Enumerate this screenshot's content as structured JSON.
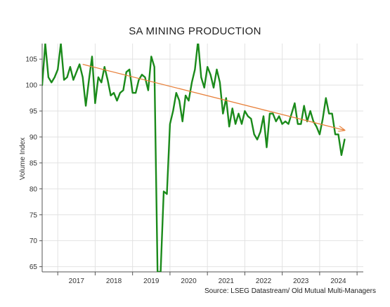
{
  "chart_data": {
    "type": "line",
    "title": "SA MINING PRODUCTION",
    "ylabel": "Volume Index",
    "xlabel": "",
    "source": "Source: LSEG Datastream/ Old Mutual Multi-Managers",
    "xlim": [
      "2016-08",
      "2025-03"
    ],
    "ylim": [
      64,
      108
    ],
    "y_ticks": [
      65,
      70,
      75,
      80,
      85,
      90,
      95,
      100,
      105
    ],
    "x_tick_labels": [
      "2017",
      "2018",
      "2019",
      "2020",
      "2021",
      "2022",
      "2023",
      "2024"
    ],
    "grid": true,
    "series": [
      {
        "color": "#1a8a1a",
        "points": [
          [
            "2016-08",
            100.0
          ],
          [
            "2016-09",
            108.0
          ],
          [
            "2016-10",
            101.5
          ],
          [
            "2016-11",
            100.5
          ],
          [
            "2016-12",
            101.5
          ],
          [
            "2017-01",
            103.0
          ],
          [
            "2017-02",
            108.0
          ],
          [
            "2017-03",
            101.0
          ],
          [
            "2017-04",
            101.5
          ],
          [
            "2017-05",
            103.5
          ],
          [
            "2017-06",
            101.0
          ],
          [
            "2017-07",
            102.5
          ],
          [
            "2017-08",
            104.0
          ],
          [
            "2017-09",
            101.5
          ],
          [
            "2017-10",
            96.0
          ],
          [
            "2017-11",
            101.0
          ],
          [
            "2017-12",
            105.5
          ],
          [
            "2018-01",
            96.5
          ],
          [
            "2018-02",
            101.5
          ],
          [
            "2018-03",
            100.5
          ],
          [
            "2018-04",
            103.5
          ],
          [
            "2018-05",
            101.0
          ],
          [
            "2018-06",
            98.0
          ],
          [
            "2018-07",
            98.5
          ],
          [
            "2018-08",
            97.0
          ],
          [
            "2018-09",
            98.5
          ],
          [
            "2018-10",
            99.0
          ],
          [
            "2018-11",
            102.5
          ],
          [
            "2018-12",
            103.0
          ],
          [
            "2019-01",
            98.5
          ],
          [
            "2019-02",
            98.5
          ],
          [
            "2019-03",
            101.0
          ],
          [
            "2019-04",
            102.0
          ],
          [
            "2019-05",
            101.5
          ],
          [
            "2019-06",
            99.0
          ],
          [
            "2019-07",
            105.5
          ],
          [
            "2019-08",
            103.5
          ],
          [
            "2019-09",
            64.0
          ],
          [
            "2019-10",
            64.0
          ],
          [
            "2019-11",
            79.5
          ],
          [
            "2019-12",
            79.0
          ],
          [
            "2020-01",
            92.5
          ],
          [
            "2020-02",
            95.0
          ],
          [
            "2020-03",
            98.5
          ],
          [
            "2020-04",
            97.0
          ],
          [
            "2020-05",
            93.0
          ],
          [
            "2020-06",
            98.0
          ],
          [
            "2020-07",
            97.0
          ],
          [
            "2020-08",
            100.5
          ],
          [
            "2020-09",
            103.0
          ],
          [
            "2020-10",
            108.5
          ],
          [
            "2020-11",
            101.5
          ],
          [
            "2020-12",
            99.5
          ],
          [
            "2021-01",
            103.5
          ],
          [
            "2021-02",
            102.0
          ],
          [
            "2021-03",
            99.5
          ],
          [
            "2021-04",
            103.0
          ],
          [
            "2021-05",
            100.5
          ],
          [
            "2021-06",
            94.5
          ],
          [
            "2021-07",
            97.5
          ],
          [
            "2021-08",
            92.0
          ],
          [
            "2021-09",
            95.5
          ],
          [
            "2021-10",
            92.5
          ],
          [
            "2021-11",
            94.5
          ],
          [
            "2021-12",
            92.5
          ],
          [
            "2022-01",
            95.0
          ],
          [
            "2022-02",
            94.0
          ],
          [
            "2022-03",
            93.5
          ],
          [
            "2022-04",
            90.5
          ],
          [
            "2022-05",
            89.5
          ],
          [
            "2022-06",
            91.0
          ],
          [
            "2022-07",
            94.0
          ],
          [
            "2022-08",
            88.0
          ],
          [
            "2022-09",
            94.5
          ],
          [
            "2022-10",
            94.5
          ],
          [
            "2022-11",
            93.0
          ],
          [
            "2022-12",
            94.0
          ],
          [
            "2023-01",
            92.5
          ],
          [
            "2023-02",
            93.0
          ],
          [
            "2023-03",
            92.5
          ],
          [
            "2023-04",
            94.5
          ],
          [
            "2023-05",
            96.5
          ],
          [
            "2023-06",
            92.5
          ],
          [
            "2023-07",
            92.5
          ],
          [
            "2023-08",
            96.0
          ],
          [
            "2023-09",
            93.0
          ],
          [
            "2023-10",
            95.0
          ],
          [
            "2023-11",
            93.0
          ],
          [
            "2023-12",
            92.0
          ],
          [
            "2024-01",
            90.5
          ],
          [
            "2024-02",
            93.5
          ],
          [
            "2024-03",
            97.5
          ],
          [
            "2024-04",
            94.5
          ],
          [
            "2024-05",
            94.5
          ],
          [
            "2024-06",
            90.5
          ],
          [
            "2024-07",
            90.5
          ],
          [
            "2024-08",
            86.5
          ],
          [
            "2024-09",
            89.5
          ]
        ]
      }
    ],
    "trendline": {
      "color": "#e8803a",
      "start": [
        "2017-09",
        104.0
      ],
      "end": [
        "2024-09",
        91.3
      ],
      "arrow": true
    }
  }
}
